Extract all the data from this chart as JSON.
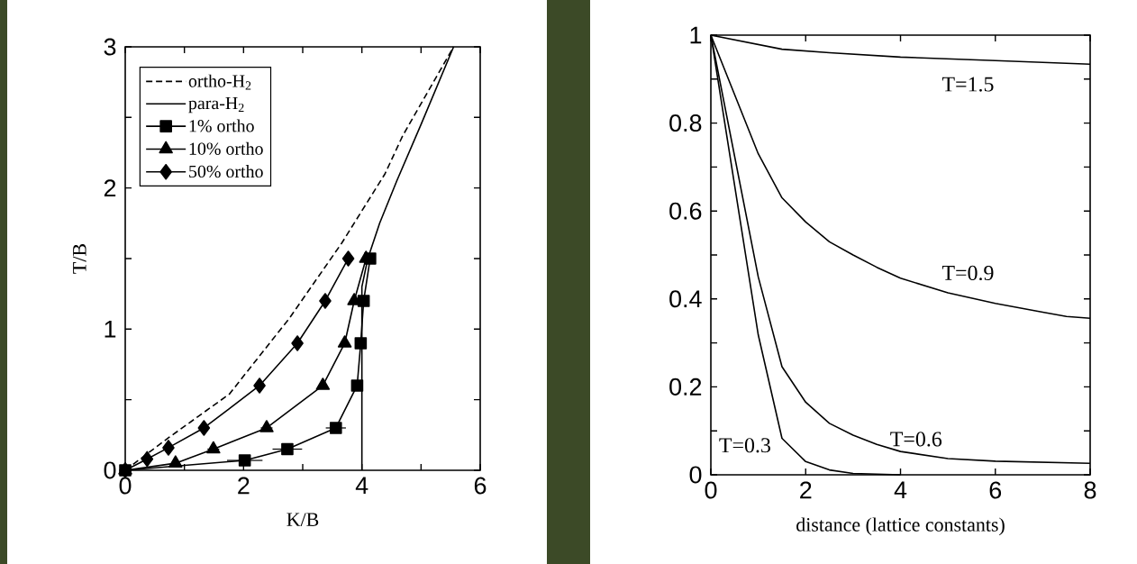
{
  "chart_data": [
    {
      "type": "line",
      "xlabel": "K/B",
      "ylabel": "T/B",
      "xlim": [
        0,
        6
      ],
      "ylim": [
        0,
        3
      ],
      "xticks": [
        0,
        {
          "value": 1,
          "label": null
        },
        2,
        {
          "value": 3,
          "label": null
        },
        4,
        {
          "value": 5,
          "label": null
        },
        6
      ],
      "yticks": [
        0,
        {
          "value": 0.5,
          "label": null
        },
        1,
        {
          "value": 1.5,
          "label": null
        },
        2,
        {
          "value": 2.5,
          "label": null
        },
        3
      ],
      "legend": "top left",
      "series": [
        {
          "name": "ortho-H$_{2}$",
          "color": "#000000",
          "marker": "none",
          "line_style": "dashed",
          "x": [
            0,
            0.73,
            1.76,
            2.78,
            3.66,
            4.39,
            4.69,
            5.55
          ],
          "values": [
            0,
            0.23,
            0.54,
            1.08,
            1.61,
            2.1,
            2.37,
            3
          ]
        },
        {
          "name": "para-H$_{2}$",
          "color": "#000000",
          "marker": "none",
          "line_style": "solid",
          "x": [
            4,
            4,
            4.1,
            4.3,
            4.59,
            5,
            5.55
          ],
          "values": [
            0,
            1.3,
            1.5,
            1.75,
            2.05,
            2.45,
            3
          ]
        },
        {
          "name": "1% ortho",
          "color": "#000000",
          "marker": "square",
          "line_style": "solid",
          "x": [
            0,
            2.02,
            2.74,
            3.56,
            3.92,
            3.98,
            4.03,
            4.14
          ],
          "values": [
            0,
            0.07,
            0.15,
            0.3,
            0.6,
            0.9,
            1.2,
            1.5
          ],
          "xerrors": [
            null,
            0.3,
            0.25,
            0.17,
            null,
            null,
            null,
            null
          ]
        },
        {
          "name": "10% ortho",
          "color": "#000000",
          "marker": "triangle",
          "line_style": "solid",
          "x": [
            0,
            0.85,
            1.49,
            2.39,
            3.34,
            3.71,
            3.87,
            4.07
          ],
          "values": [
            0,
            0.05,
            0.15,
            0.3,
            0.6,
            0.9,
            1.2,
            1.5
          ],
          "xerrors": [
            null,
            null,
            0.1,
            0.1,
            0.07,
            null,
            null,
            null
          ]
        },
        {
          "name": "50% ortho",
          "color": "#000000",
          "marker": "diamond",
          "line_style": "solid",
          "x": [
            0,
            0.37,
            0.73,
            1.33,
            2.27,
            2.91,
            3.38,
            3.77
          ],
          "values": [
            0,
            0.08,
            0.16,
            0.3,
            0.6,
            0.9,
            1.2,
            1.5
          ]
        }
      ]
    },
    {
      "type": "line",
      "xlabel": "distance (lattice constants)",
      "xlim": [
        0,
        8
      ],
      "ylim": [
        0,
        1
      ],
      "xticks": [
        0,
        2,
        4,
        6,
        8
      ],
      "yticks": [
        0,
        {
          "value": 0.1,
          "label": null
        },
        0.2,
        {
          "value": 0.3,
          "label": null
        },
        0.4,
        {
          "value": 0.5,
          "label": null
        },
        0.6,
        {
          "value": 0.7,
          "label": null
        },
        0.8,
        {
          "value": 0.9,
          "label": null
        },
        1
      ],
      "annotations": [
        "T=1.5",
        "T=0.9",
        "T=0.6",
        "T=0.3"
      ],
      "series": [
        {
          "color": "#000000",
          "x": [
            0,
            1.5,
            2.5,
            4,
            6,
            8
          ],
          "values": [
            1,
            0.968,
            0.96,
            0.95,
            0.942,
            0.934
          ]
        },
        {
          "color": "#000000",
          "x": [
            0,
            1,
            1.5,
            2,
            2.5,
            3,
            3.5,
            4,
            5,
            6,
            7,
            7.5,
            8
          ],
          "values": [
            1,
            0.73,
            0.63,
            0.575,
            0.53,
            0.5,
            0.472,
            0.447,
            0.414,
            0.39,
            0.37,
            0.36,
            0.356
          ]
        },
        {
          "color": "#000000",
          "x": [
            0,
            1,
            1.5,
            2,
            2.5,
            3,
            3.5,
            4,
            5,
            6,
            8
          ],
          "values": [
            1,
            0.45,
            0.246,
            0.165,
            0.117,
            0.09,
            0.069,
            0.053,
            0.037,
            0.031,
            0.026
          ]
        },
        {
          "color": "#000000",
          "x": [
            0,
            1,
            1.5,
            2,
            2.5,
            3,
            4
          ],
          "values": [
            1,
            0.318,
            0.083,
            0.03,
            0.011,
            0.003,
            0
          ]
        }
      ]
    }
  ]
}
